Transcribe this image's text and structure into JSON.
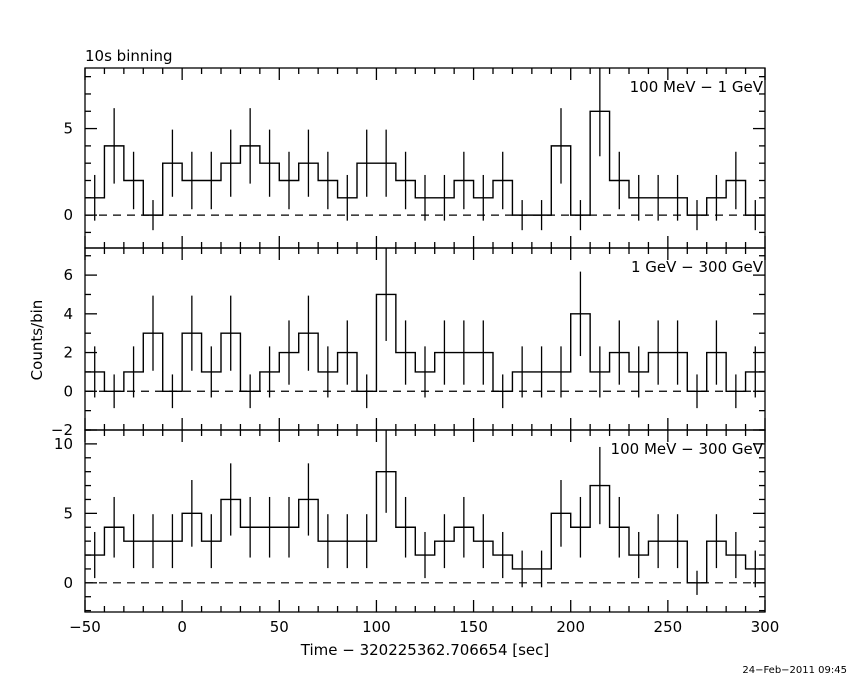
{
  "chart_data": {
    "type": "histogram-step-errorbars",
    "title": "10s binning",
    "xlabel": "Time − 320225362.706654 [sec]",
    "ylabel": "Counts/bin",
    "timestamp": "24−Feb−2011 09:45",
    "xlim": [
      -50,
      300
    ],
    "bin_width": 10,
    "x_bin_centers": [
      -45,
      -35,
      -25,
      -15,
      -5,
      5,
      15,
      25,
      35,
      45,
      55,
      65,
      75,
      85,
      95,
      105,
      115,
      125,
      135,
      145,
      155,
      165,
      175,
      185,
      195,
      205,
      215,
      225,
      235,
      245,
      255,
      265,
      275,
      285,
      295
    ],
    "x_ticks": [
      -50,
      0,
      50,
      100,
      150,
      200,
      250,
      300
    ],
    "x_tick_labels": [
      "−50",
      "0",
      "50",
      "100",
      "150",
      "200",
      "250",
      "300"
    ],
    "panels": [
      {
        "name": "100 MeV − 1 GeV",
        "ylim": [
          -1.9,
          8.5
        ],
        "y_ticks": [
          0,
          5
        ],
        "y_tick_labels": [
          "0",
          "5"
        ],
        "y_minor_step": 1,
        "y_major_step": 5,
        "values": [
          1,
          4,
          2,
          0,
          3,
          2,
          2,
          3,
          4,
          3,
          2,
          3,
          2,
          1,
          3,
          3,
          2,
          1,
          1,
          2,
          1,
          2,
          0,
          0,
          4,
          0,
          6,
          2,
          1,
          1,
          1,
          0,
          1,
          2,
          0
        ],
        "errors": [
          1.32,
          2.18,
          1.66,
          0.87,
          1.94,
          1.66,
          1.66,
          1.94,
          2.18,
          1.94,
          1.66,
          1.94,
          1.66,
          1.32,
          1.94,
          1.94,
          1.66,
          1.32,
          1.32,
          1.66,
          1.32,
          1.66,
          0.87,
          0.87,
          2.18,
          0.87,
          2.6,
          1.66,
          1.32,
          1.32,
          1.32,
          0.87,
          1.32,
          1.66,
          0.87
        ]
      },
      {
        "name": "1 GeV − 300 GeV",
        "ylim": [
          -2,
          7.4
        ],
        "y_ticks": [
          -2,
          0,
          2,
          4,
          6
        ],
        "y_tick_labels": [
          "−2",
          "0",
          "2",
          "4",
          "6"
        ],
        "y_minor_step": 1,
        "y_major_step": 2,
        "values": [
          1,
          0,
          1,
          3,
          0,
          3,
          1,
          3,
          0,
          1,
          2,
          3,
          1,
          2,
          0,
          5,
          2,
          1,
          2,
          2,
          2,
          0,
          1,
          1,
          1,
          4,
          1,
          2,
          1,
          2,
          2,
          0,
          2,
          0,
          1
        ],
        "errors": [
          1.32,
          0.87,
          1.32,
          1.94,
          0.87,
          1.94,
          1.32,
          1.94,
          0.87,
          1.32,
          1.66,
          1.94,
          1.32,
          1.66,
          0.87,
          2.4,
          1.66,
          1.32,
          1.66,
          1.66,
          1.66,
          0.87,
          1.32,
          1.32,
          1.32,
          2.18,
          1.32,
          1.66,
          1.32,
          1.66,
          1.66,
          0.87,
          1.66,
          0.87,
          1.32
        ]
      },
      {
        "name": "100 MeV − 300 GeV",
        "ylim": [
          -2.1,
          11
        ],
        "y_ticks": [
          0,
          5,
          10
        ],
        "y_tick_labels": [
          "0",
          "5",
          "10"
        ],
        "y_minor_step": 1,
        "y_major_step": 5,
        "values": [
          2,
          4,
          3,
          3,
          3,
          5,
          3,
          6,
          4,
          4,
          4,
          6,
          3,
          3,
          3,
          8,
          4,
          2,
          3,
          4,
          3,
          2,
          1,
          1,
          5,
          4,
          7,
          4,
          2,
          3,
          3,
          0,
          3,
          2,
          1
        ],
        "errors": [
          1.66,
          2.18,
          1.94,
          1.94,
          1.94,
          2.4,
          1.94,
          2.6,
          2.18,
          2.18,
          2.18,
          2.6,
          1.94,
          1.94,
          1.94,
          2.96,
          2.18,
          1.66,
          1.94,
          2.18,
          1.94,
          1.66,
          1.32,
          1.32,
          2.4,
          2.18,
          2.78,
          2.18,
          1.66,
          1.94,
          1.94,
          0.87,
          1.94,
          1.66,
          1.32
        ]
      }
    ]
  }
}
